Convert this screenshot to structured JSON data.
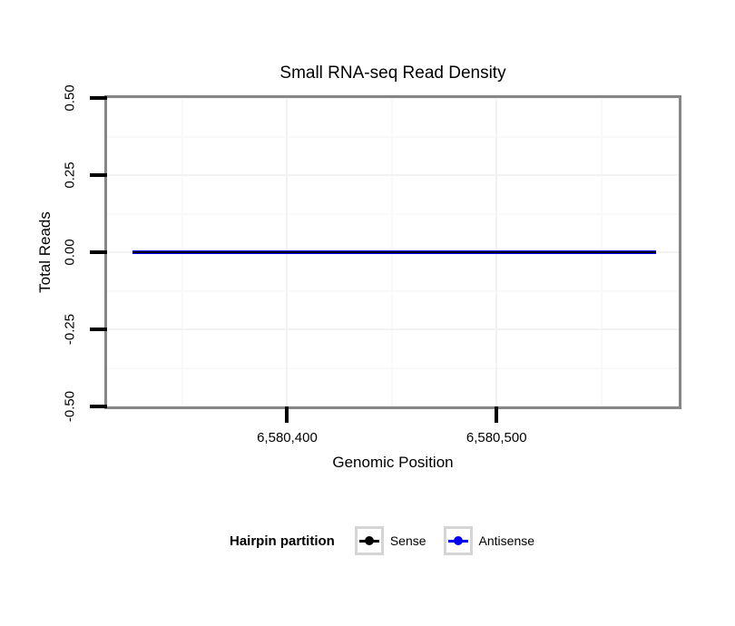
{
  "chart_data": {
    "type": "line",
    "title": "Small RNA-seq Read Density",
    "xlabel": "Genomic Position",
    "ylabel": "Total Reads",
    "x_axis": {
      "lim": [
        6580314,
        6580587
      ],
      "major_ticks": [
        6580400,
        6580500
      ],
      "major_tick_labels": [
        "6,580,400",
        "6,580,500"
      ],
      "minor_ticks": [
        6580350,
        6580450,
        6580550
      ]
    },
    "y_axis": {
      "lim": [
        -0.5,
        0.5
      ],
      "major_ticks": [
        0.5,
        0.25,
        0.0,
        -0.25,
        -0.5
      ],
      "major_tick_labels": [
        "0.50",
        "0.25",
        "0.00",
        "-0.25",
        "-0.50"
      ],
      "minor_ticks": [
        0.375,
        0.125,
        -0.125,
        -0.375
      ]
    },
    "grid": {
      "on": true,
      "major_color": "#f2f2f2",
      "minor_color": "#f9f9f9"
    },
    "series": [
      {
        "name": "Sense",
        "color": "#000000",
        "x": [
          6580326,
          6580576
        ],
        "y": [
          0,
          0
        ],
        "linewidth": 2
      },
      {
        "name": "Antisense",
        "color": "#0000EE",
        "x": [
          6580326,
          6580576
        ],
        "y": [
          0,
          0
        ],
        "linewidth": 4
      }
    ],
    "legend": {
      "title": "Hairpin partition",
      "position": "bottom",
      "items": [
        {
          "label": "Sense",
          "color": "#000000"
        },
        {
          "label": "Antisense",
          "color": "#0000EE"
        }
      ]
    }
  },
  "colors": {
    "panel_border": "#868686",
    "tick": "#000000",
    "text": "#000000",
    "legend_key_border": "#d5d5d5",
    "legend_key_background": "#ffffff",
    "plot_background": "#ffffff"
  }
}
